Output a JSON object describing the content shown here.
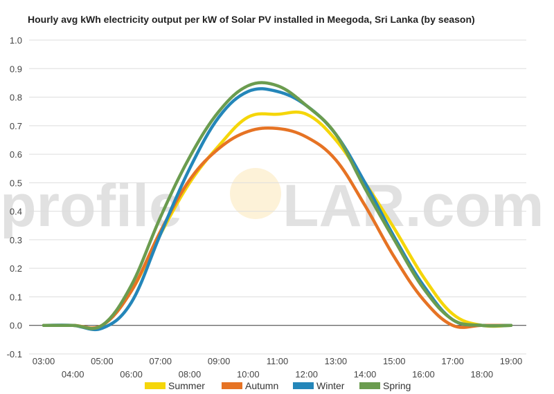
{
  "chart_data": {
    "type": "line",
    "title": "Hourly avg kWh electricity output per kW of Solar PV installed in Meegoda, Sri Lanka (by season)",
    "xlabel": "",
    "ylabel": "",
    "ylim": [
      -0.1,
      1.0
    ],
    "y_ticks": [
      "1.0",
      "0.9",
      "0.8",
      "0.7",
      "0.6",
      "0.5",
      "0.4",
      "0.3",
      "0.2",
      "0.1",
      "0.0",
      "-0.1"
    ],
    "x_ticks_upper": [
      "03:00",
      "05:00",
      "07:00",
      "09:00",
      "11:00",
      "13:00",
      "15:00",
      "17:00",
      "19:00"
    ],
    "x_ticks_lower": [
      "04:00",
      "06:00",
      "08:00",
      "10:00",
      "12:00",
      "14:00",
      "16:00",
      "18:00"
    ],
    "x": [
      "03:00",
      "04:00",
      "05:00",
      "06:00",
      "07:00",
      "08:00",
      "09:00",
      "10:00",
      "11:00",
      "12:00",
      "13:00",
      "14:00",
      "15:00",
      "16:00",
      "17:00",
      "18:00",
      "19:00"
    ],
    "grid": true,
    "legend_position": "bottom",
    "series": [
      {
        "name": "Summer",
        "color": "#f5d60a",
        "values": [
          0.0,
          0.0,
          0.0,
          0.12,
          0.32,
          0.5,
          0.63,
          0.73,
          0.74,
          0.74,
          0.65,
          0.5,
          0.34,
          0.17,
          0.04,
          0.0,
          0.0
        ]
      },
      {
        "name": "Autumn",
        "color": "#e67324",
        "values": [
          0.0,
          0.0,
          0.0,
          0.12,
          0.33,
          0.51,
          0.62,
          0.68,
          0.69,
          0.66,
          0.58,
          0.42,
          0.24,
          0.09,
          0.0,
          0.0,
          0.0
        ]
      },
      {
        "name": "Winter",
        "color": "#2486b9",
        "values": [
          0.0,
          0.0,
          -0.01,
          0.08,
          0.32,
          0.55,
          0.73,
          0.82,
          0.82,
          0.77,
          0.67,
          0.5,
          0.31,
          0.14,
          0.02,
          0.0,
          0.0
        ]
      },
      {
        "name": "Spring",
        "color": "#6b9c4f",
        "values": [
          0.0,
          0.0,
          0.0,
          0.14,
          0.38,
          0.59,
          0.75,
          0.84,
          0.84,
          0.77,
          0.67,
          0.48,
          0.3,
          0.13,
          0.02,
          0.0,
          0.0
        ]
      }
    ]
  },
  "watermark": {
    "text_left": "profile",
    "text_right": "LAR.com"
  }
}
